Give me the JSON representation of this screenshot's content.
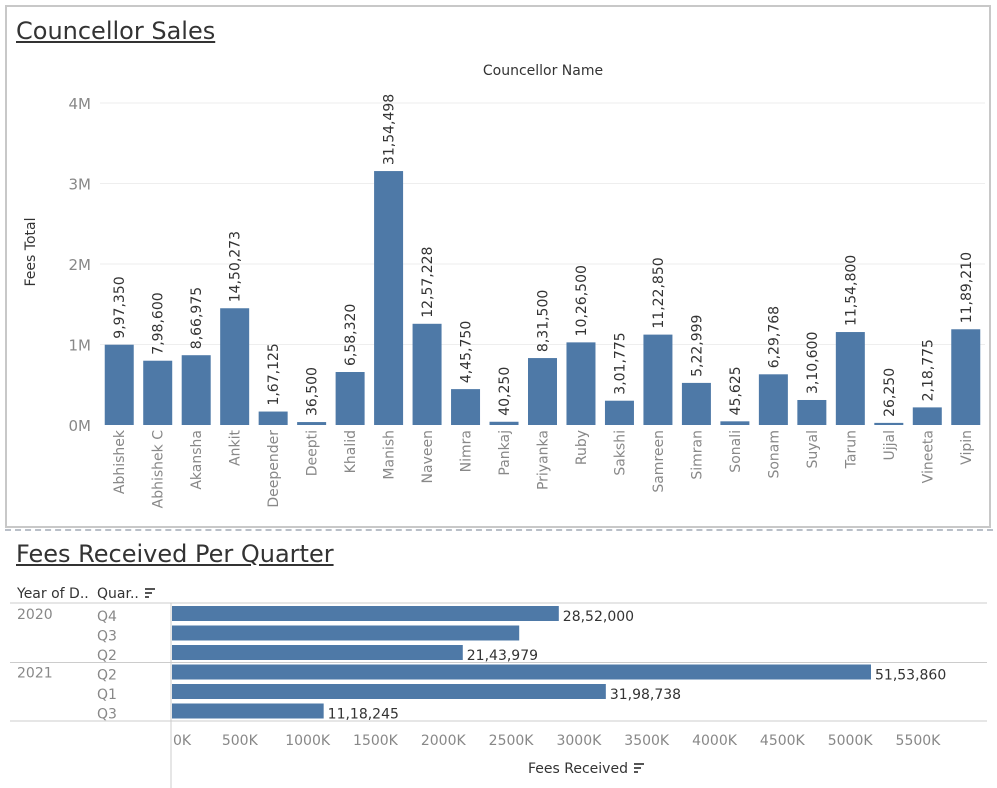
{
  "top_panel": {
    "title": "Councellor Sales"
  },
  "bottom_panel": {
    "title": "Fees Received Per Quarter",
    "header_year": "Year of D..",
    "header_quarter": "Quar..",
    "sort_icon": "sort-descending-icon"
  },
  "colors": {
    "bar": "#4e79a7",
    "grid": "#eeeeee",
    "axis_text": "#888888"
  },
  "chart_data": [
    {
      "type": "bar",
      "title": "Councellor Sales",
      "xlabel": "Councellor Name",
      "ylabel": "Fees Total",
      "ylim": [
        0,
        4000000
      ],
      "yticks": [
        0,
        1000000,
        2000000,
        3000000,
        4000000
      ],
      "ytick_labels": [
        "0M",
        "1M",
        "2M",
        "3M",
        "4M"
      ],
      "grid": true,
      "categories": [
        "Abhishek",
        "Abhishek C",
        "Akansha",
        "Ankit",
        "Deepender",
        "Deepti",
        "Khalid",
        "Manish",
        "Naveen",
        "Nimra",
        "Pankaj",
        "Priyanka",
        "Ruby",
        "Sakshi",
        "Samreen",
        "Simran",
        "Sonali",
        "Sonam",
        "Suyal",
        "Tarun",
        "Ujjal",
        "Vineeta",
        "Vipin"
      ],
      "values": [
        997350,
        798600,
        866975,
        1450273,
        167125,
        36500,
        658320,
        3154498,
        1257228,
        445750,
        40250,
        831500,
        1026500,
        301775,
        1122850,
        522999,
        45625,
        629768,
        310600,
        1154800,
        26250,
        218775,
        1189210
      ],
      "data_labels": [
        "9,97,350",
        "7,98,600",
        "8,66,975",
        "14,50,273",
        "1,67,125",
        "36,500",
        "6,58,320",
        "31,54,498",
        "12,57,228",
        "4,45,750",
        "40,250",
        "8,31,500",
        "10,26,500",
        "3,01,775",
        "11,22,850",
        "5,22,999",
        "45,625",
        "6,29,768",
        "3,10,600",
        "11,54,800",
        "26,250",
        "2,18,775",
        "11,89,210"
      ]
    },
    {
      "type": "bar",
      "orientation": "horizontal",
      "title": "Fees Received Per Quarter",
      "xlabel": "Fees Received",
      "xlim": [
        0,
        5900000
      ],
      "xticks": [
        0,
        500000,
        1000000,
        1500000,
        2000000,
        2500000,
        3000000,
        3500000,
        4000000,
        4500000,
        5000000,
        5500000
      ],
      "xtick_labels": [
        "0K",
        "500K",
        "1000K",
        "1500K",
        "2000K",
        "2500K",
        "3000K",
        "3500K",
        "4000K",
        "4500K",
        "5000K",
        "5500K"
      ],
      "rows": [
        {
          "year": "2020",
          "quarter": "Q4",
          "value": 2852000,
          "label": "28,52,000"
        },
        {
          "year": "",
          "quarter": "Q3",
          "value": 2560000,
          "label": ""
        },
        {
          "year": "",
          "quarter": "Q2",
          "value": 2143979,
          "label": "21,43,979"
        },
        {
          "year": "2021",
          "quarter": "Q2",
          "value": 5153860,
          "label": "51,53,860"
        },
        {
          "year": "",
          "quarter": "Q1",
          "value": 3198738,
          "label": "31,98,738"
        },
        {
          "year": "",
          "quarter": "Q3",
          "value": 1118245,
          "label": "11,18,245"
        }
      ]
    }
  ]
}
